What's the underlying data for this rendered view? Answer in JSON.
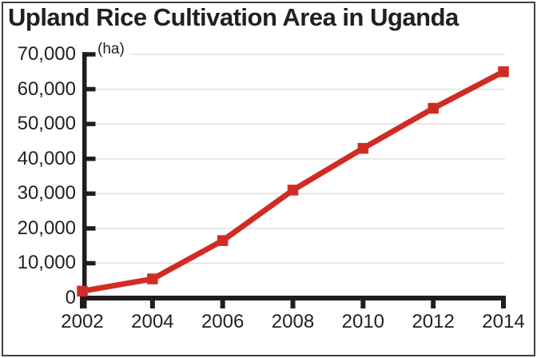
{
  "chart_data": {
    "type": "line",
    "title": "Upland Rice Cultivation Area in Uganda",
    "unit_label": "(ha)",
    "x": [
      2002,
      2004,
      2006,
      2008,
      2010,
      2012,
      2014
    ],
    "values": [
      2000,
      5500,
      16500,
      31000,
      43000,
      54500,
      65000
    ],
    "series_name": "upland-rice-cultivation-area",
    "xtick_labels": [
      "2002",
      "2004",
      "2006",
      "2008",
      "2010",
      "2012",
      "2014"
    ],
    "ytick_values": [
      0,
      10000,
      20000,
      30000,
      40000,
      50000,
      60000,
      70000
    ],
    "ytick_labels": [
      "0",
      "10,000",
      "20,000",
      "30,000",
      "40,000",
      "50,000",
      "60,000",
      "70,000"
    ],
    "ylim": [
      0,
      70000
    ],
    "xlim": [
      2002,
      2014
    ],
    "xlabel": "",
    "ylabel": "",
    "grid": "horizontal",
    "legend": "none",
    "marker": "square",
    "colors": {
      "series": "#d02c24",
      "axis": "#211d1e",
      "text": "#231f20",
      "gridline": "#e0e0e0",
      "border": "#414141",
      "background": "#ffffff"
    }
  }
}
